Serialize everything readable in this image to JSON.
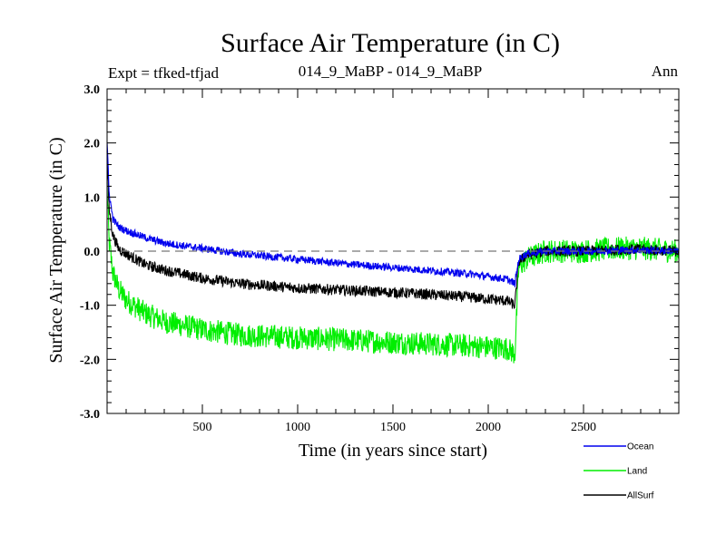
{
  "chart_data": {
    "type": "line",
    "title": "Surface Air Temperature (in C)",
    "subtitle_left": "Expt = tfked-tfjad",
    "subtitle_center": "014_9_MaBP - 014_9_MaBP",
    "subtitle_right": "Ann",
    "xlabel": "Time (in years since start)",
    "ylabel": "Surface Air Temperature (in C)",
    "xlim": [
      0,
      3000
    ],
    "ylim": [
      -3.0,
      3.0
    ],
    "x_ticks": [
      500,
      1000,
      1500,
      2000,
      2500
    ],
    "y_ticks": [
      -3.0,
      -2.0,
      -1.0,
      0.0,
      1.0,
      2.0,
      3.0
    ],
    "y_tick_labels": [
      "-3.0",
      "-2.0",
      "-1.0",
      "0.0",
      "1.0",
      "2.0",
      "3.0"
    ],
    "reference_line": 0.0,
    "series": [
      {
        "name": "Land",
        "color": "#00ee00",
        "x": [
          0,
          10,
          30,
          60,
          100,
          200,
          300,
          500,
          700,
          1000,
          1300,
          1600,
          1900,
          2100,
          2140,
          2160,
          2200,
          2300,
          2500,
          2700,
          2800,
          3000
        ],
        "y": [
          1.2,
          0.2,
          -0.4,
          -0.7,
          -0.9,
          -1.15,
          -1.3,
          -1.45,
          -1.55,
          -1.6,
          -1.65,
          -1.7,
          -1.75,
          -1.8,
          -1.9,
          -0.3,
          -0.15,
          0.0,
          0.0,
          0.05,
          0.05,
          0.0
        ],
        "noise": 0.22
      },
      {
        "name": "AllSurf",
        "color": "#000000",
        "x": [
          0,
          10,
          30,
          60,
          100,
          200,
          300,
          500,
          700,
          1000,
          1300,
          1600,
          1900,
          2100,
          2140,
          2160,
          2200,
          2300,
          2500,
          2700,
          2800,
          3000
        ],
        "y": [
          1.8,
          0.8,
          0.3,
          0.05,
          -0.05,
          -0.25,
          -0.35,
          -0.5,
          -0.6,
          -0.68,
          -0.73,
          -0.78,
          -0.85,
          -0.92,
          -1.0,
          -0.2,
          -0.08,
          0.0,
          0.0,
          0.03,
          0.03,
          0.0
        ],
        "noise": 0.1
      },
      {
        "name": "Ocean",
        "color": "#0000ee",
        "x": [
          0,
          10,
          30,
          60,
          100,
          200,
          300,
          500,
          700,
          1000,
          1300,
          1600,
          1900,
          2100,
          2140,
          2160,
          2200,
          2300,
          2500,
          2700,
          2800,
          3000
        ],
        "y": [
          2.05,
          1.1,
          0.6,
          0.45,
          0.38,
          0.25,
          0.15,
          0.05,
          -0.05,
          -0.15,
          -0.25,
          -0.33,
          -0.42,
          -0.52,
          -0.6,
          -0.15,
          -0.05,
          0.0,
          0.0,
          0.02,
          0.02,
          0.0
        ],
        "noise": 0.07
      }
    ],
    "legend": [
      {
        "name": "Ocean",
        "color": "#0000ee"
      },
      {
        "name": "Land",
        "color": "#00ee00"
      },
      {
        "name": "AllSurf",
        "color": "#000000"
      }
    ],
    "legend_position": "bottom-right"
  }
}
